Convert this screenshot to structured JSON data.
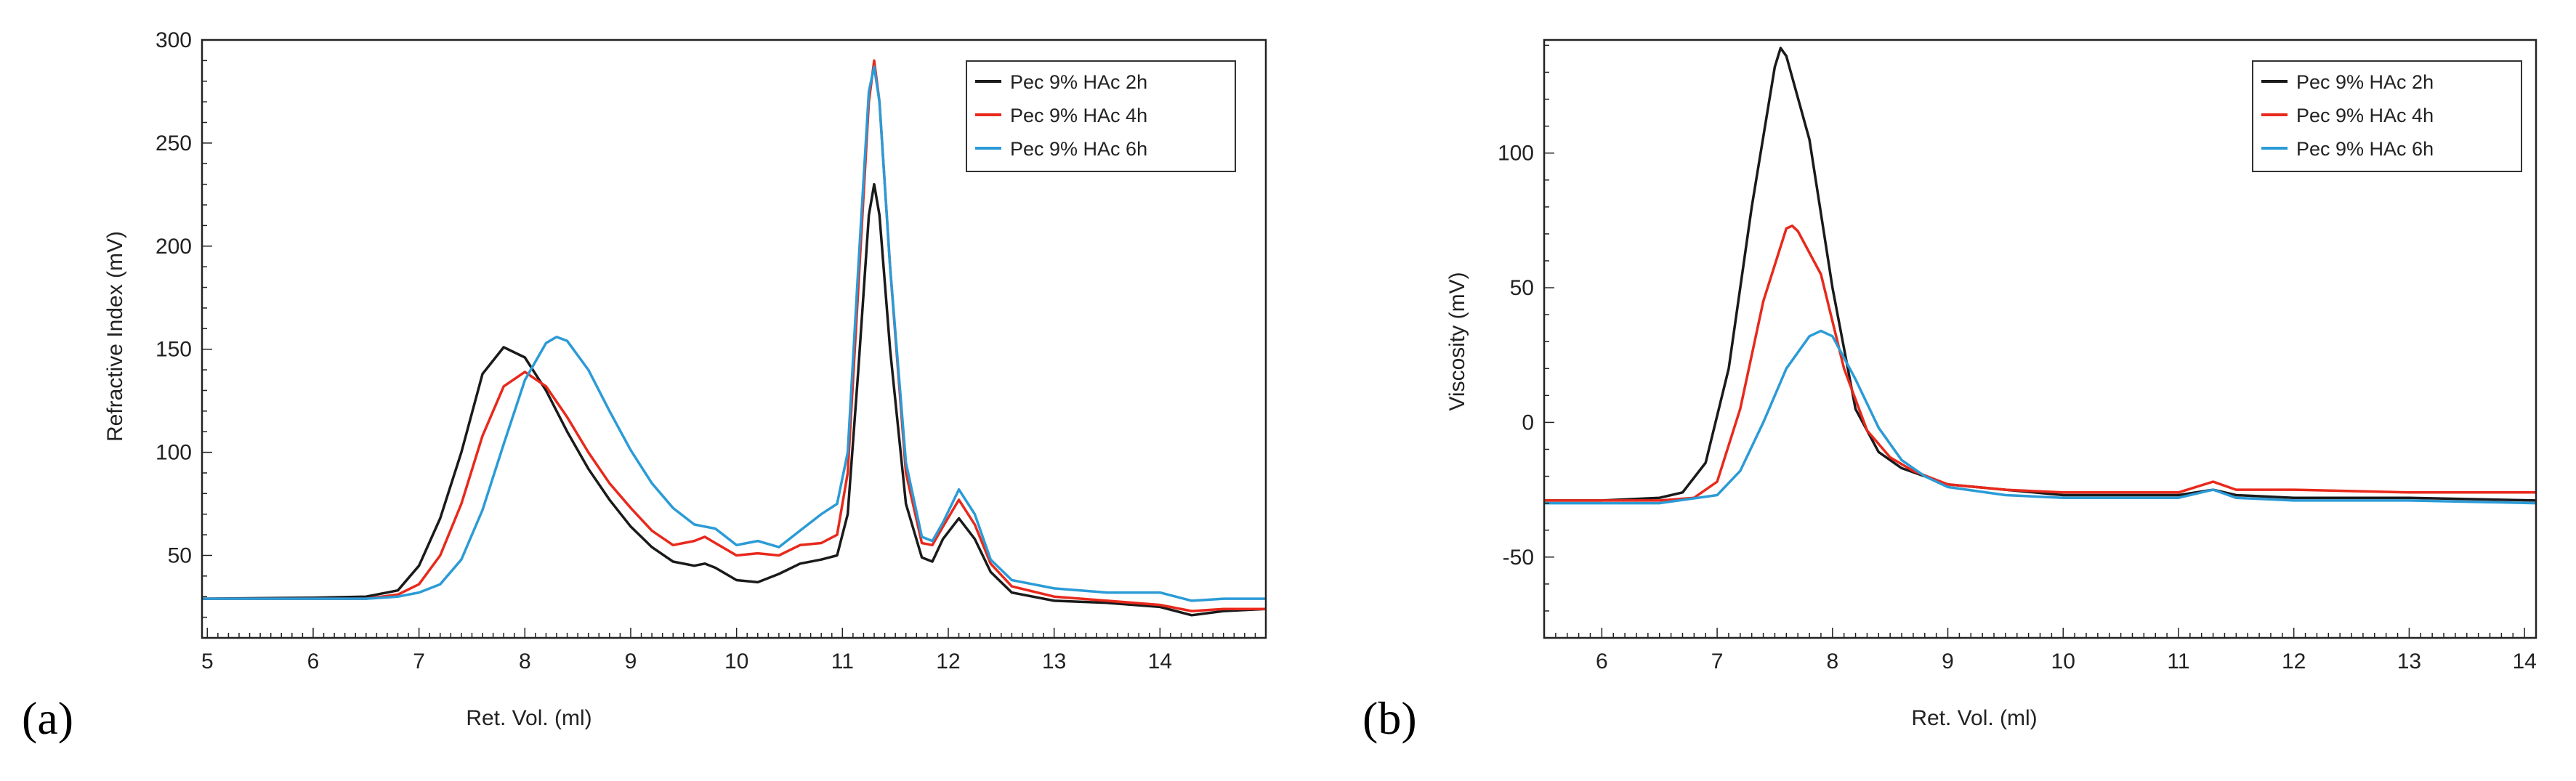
{
  "figure_labels": [
    "(a)",
    "(b)"
  ],
  "chart_data": [
    {
      "panel": "(a)",
      "type": "line",
      "title": "",
      "xlabel": "Ret. Vol. (ml)",
      "ylabel": "Refractive Index (mV)",
      "xlim": [
        4.95,
        15
      ],
      "ylim": [
        10,
        300
      ],
      "xticks": [
        5,
        6,
        7,
        8,
        9,
        10,
        11,
        12,
        13,
        14
      ],
      "yticks": [
        50,
        100,
        150,
        200,
        250,
        300
      ],
      "legend_position": "top-right",
      "grid": false,
      "series": [
        {
          "name": "Pec 9% HAc 2h",
          "color": "#1a1a1a",
          "points": [
            [
              4.95,
              29
            ],
            [
              6.0,
              29.5
            ],
            [
              6.5,
              30
            ],
            [
              6.8,
              33
            ],
            [
              7.0,
              45
            ],
            [
              7.2,
              68
            ],
            [
              7.4,
              100
            ],
            [
              7.6,
              138
            ],
            [
              7.8,
              151
            ],
            [
              8.0,
              146
            ],
            [
              8.2,
              130
            ],
            [
              8.4,
              110
            ],
            [
              8.6,
              92
            ],
            [
              8.8,
              77
            ],
            [
              9.0,
              64
            ],
            [
              9.2,
              54
            ],
            [
              9.4,
              47
            ],
            [
              9.6,
              45
            ],
            [
              9.7,
              46
            ],
            [
              9.8,
              44
            ],
            [
              10.0,
              38
            ],
            [
              10.2,
              37
            ],
            [
              10.4,
              41
            ],
            [
              10.6,
              46
            ],
            [
              10.8,
              48
            ],
            [
              10.95,
              50
            ],
            [
              11.05,
              70
            ],
            [
              11.15,
              140
            ],
            [
              11.25,
              215
            ],
            [
              11.3,
              230
            ],
            [
              11.35,
              215
            ],
            [
              11.45,
              150
            ],
            [
              11.6,
              75
            ],
            [
              11.75,
              49
            ],
            [
              11.85,
              47
            ],
            [
              11.95,
              58
            ],
            [
              12.1,
              68
            ],
            [
              12.25,
              58
            ],
            [
              12.4,
              42
            ],
            [
              12.6,
              32
            ],
            [
              13.0,
              28
            ],
            [
              13.5,
              27
            ],
            [
              14.0,
              25
            ],
            [
              14.3,
              21
            ],
            [
              14.6,
              23
            ],
            [
              15.0,
              24
            ]
          ]
        },
        {
          "name": "Pec 9% HAc 4h",
          "color": "#e8291c",
          "points": [
            [
              4.95,
              29
            ],
            [
              6.0,
              29
            ],
            [
              6.5,
              29
            ],
            [
              6.8,
              31
            ],
            [
              7.0,
              36
            ],
            [
              7.2,
              50
            ],
            [
              7.4,
              75
            ],
            [
              7.6,
              108
            ],
            [
              7.8,
              132
            ],
            [
              8.0,
              139
            ],
            [
              8.2,
              132
            ],
            [
              8.4,
              117
            ],
            [
              8.6,
              100
            ],
            [
              8.8,
              85
            ],
            [
              9.0,
              73
            ],
            [
              9.2,
              62
            ],
            [
              9.4,
              55
            ],
            [
              9.6,
              57
            ],
            [
              9.7,
              59
            ],
            [
              9.8,
              56
            ],
            [
              10.0,
              50
            ],
            [
              10.2,
              51
            ],
            [
              10.4,
              50
            ],
            [
              10.6,
              55
            ],
            [
              10.8,
              56
            ],
            [
              10.95,
              60
            ],
            [
              11.05,
              90
            ],
            [
              11.15,
              180
            ],
            [
              11.25,
              270
            ],
            [
              11.3,
              290
            ],
            [
              11.35,
              270
            ],
            [
              11.45,
              190
            ],
            [
              11.6,
              90
            ],
            [
              11.75,
              56
            ],
            [
              11.85,
              55
            ],
            [
              11.95,
              64
            ],
            [
              12.1,
              77
            ],
            [
              12.25,
              65
            ],
            [
              12.4,
              46
            ],
            [
              12.6,
              35
            ],
            [
              13.0,
              30
            ],
            [
              13.5,
              28
            ],
            [
              14.0,
              26
            ],
            [
              14.3,
              23
            ],
            [
              14.6,
              24
            ],
            [
              15.0,
              24
            ]
          ]
        },
        {
          "name": "Pec 9% HAc 6h",
          "color": "#2b9bd6",
          "points": [
            [
              4.95,
              29
            ],
            [
              6.0,
              29
            ],
            [
              6.5,
              29
            ],
            [
              6.8,
              30
            ],
            [
              7.0,
              32
            ],
            [
              7.2,
              36
            ],
            [
              7.4,
              48
            ],
            [
              7.6,
              72
            ],
            [
              7.8,
              104
            ],
            [
              8.0,
              135
            ],
            [
              8.2,
              153
            ],
            [
              8.3,
              156
            ],
            [
              8.4,
              154
            ],
            [
              8.6,
              140
            ],
            [
              8.8,
              120
            ],
            [
              9.0,
              101
            ],
            [
              9.2,
              85
            ],
            [
              9.4,
              73
            ],
            [
              9.6,
              65
            ],
            [
              9.7,
              64
            ],
            [
              9.8,
              63
            ],
            [
              10.0,
              55
            ],
            [
              10.2,
              57
            ],
            [
              10.4,
              54
            ],
            [
              10.6,
              62
            ],
            [
              10.8,
              70
            ],
            [
              10.95,
              75
            ],
            [
              11.05,
              100
            ],
            [
              11.15,
              190
            ],
            [
              11.25,
              275
            ],
            [
              11.3,
              287
            ],
            [
              11.35,
              270
            ],
            [
              11.45,
              190
            ],
            [
              11.6,
              95
            ],
            [
              11.75,
              59
            ],
            [
              11.85,
              57
            ],
            [
              11.95,
              66
            ],
            [
              12.1,
              82
            ],
            [
              12.25,
              70
            ],
            [
              12.4,
              48
            ],
            [
              12.6,
              38
            ],
            [
              13.0,
              34
            ],
            [
              13.5,
              32
            ],
            [
              14.0,
              32
            ],
            [
              14.3,
              28
            ],
            [
              14.6,
              29
            ],
            [
              15.0,
              29
            ]
          ]
        }
      ]
    },
    {
      "panel": "(b)",
      "type": "line",
      "title": "",
      "xlabel": "Ret. Vol. (ml)",
      "ylabel": "Viscosity (mV)",
      "xlim": [
        5.5,
        14.1
      ],
      "ylim": [
        -80,
        142
      ],
      "xticks": [
        6,
        7,
        8,
        9,
        10,
        11,
        12,
        13,
        14
      ],
      "yticks": [
        -50,
        0,
        50,
        100
      ],
      "legend_position": "top-right",
      "grid": false,
      "series": [
        {
          "name": "Pec 9% HAc 2h",
          "color": "#1a1a1a",
          "points": [
            [
              5.5,
              -29
            ],
            [
              6.0,
              -29
            ],
            [
              6.5,
              -28
            ],
            [
              6.7,
              -26
            ],
            [
              6.9,
              -15
            ],
            [
              7.1,
              20
            ],
            [
              7.3,
              80
            ],
            [
              7.5,
              132
            ],
            [
              7.55,
              139
            ],
            [
              7.6,
              136
            ],
            [
              7.8,
              105
            ],
            [
              8.0,
              50
            ],
            [
              8.2,
              5
            ],
            [
              8.4,
              -11
            ],
            [
              8.6,
              -17
            ],
            [
              8.8,
              -20
            ],
            [
              9.0,
              -23
            ],
            [
              9.5,
              -25
            ],
            [
              10.0,
              -27
            ],
            [
              10.5,
              -27
            ],
            [
              11.0,
              -27
            ],
            [
              11.3,
              -25
            ],
            [
              11.5,
              -27
            ],
            [
              12.0,
              -28
            ],
            [
              13.0,
              -28
            ],
            [
              14.1,
              -29
            ]
          ]
        },
        {
          "name": "Pec 9% HAc 4h",
          "color": "#e8291c",
          "points": [
            [
              5.5,
              -29
            ],
            [
              6.0,
              -29
            ],
            [
              6.5,
              -29
            ],
            [
              6.8,
              -28
            ],
            [
              7.0,
              -22
            ],
            [
              7.2,
              5
            ],
            [
              7.4,
              45
            ],
            [
              7.6,
              72
            ],
            [
              7.65,
              73
            ],
            [
              7.7,
              71
            ],
            [
              7.9,
              55
            ],
            [
              8.1,
              20
            ],
            [
              8.3,
              -3
            ],
            [
              8.5,
              -13
            ],
            [
              8.7,
              -18
            ],
            [
              9.0,
              -23
            ],
            [
              9.5,
              -25
            ],
            [
              10.0,
              -26
            ],
            [
              10.5,
              -26
            ],
            [
              11.0,
              -26
            ],
            [
              11.3,
              -22
            ],
            [
              11.5,
              -25
            ],
            [
              12.0,
              -25
            ],
            [
              13.0,
              -26
            ],
            [
              14.1,
              -26
            ]
          ]
        },
        {
          "name": "Pec 9% HAc 6h",
          "color": "#2b9bd6",
          "points": [
            [
              5.5,
              -30
            ],
            [
              6.0,
              -30
            ],
            [
              6.5,
              -30
            ],
            [
              7.0,
              -27
            ],
            [
              7.2,
              -18
            ],
            [
              7.4,
              0
            ],
            [
              7.6,
              20
            ],
            [
              7.8,
              32
            ],
            [
              7.9,
              34
            ],
            [
              8.0,
              32
            ],
            [
              8.2,
              16
            ],
            [
              8.4,
              -2
            ],
            [
              8.6,
              -14
            ],
            [
              8.8,
              -20
            ],
            [
              9.0,
              -24
            ],
            [
              9.5,
              -27
            ],
            [
              10.0,
              -28
            ],
            [
              10.5,
              -28
            ],
            [
              11.0,
              -28
            ],
            [
              11.3,
              -25
            ],
            [
              11.5,
              -28
            ],
            [
              12.0,
              -29
            ],
            [
              13.0,
              -29
            ],
            [
              14.1,
              -30
            ]
          ]
        }
      ]
    }
  ]
}
